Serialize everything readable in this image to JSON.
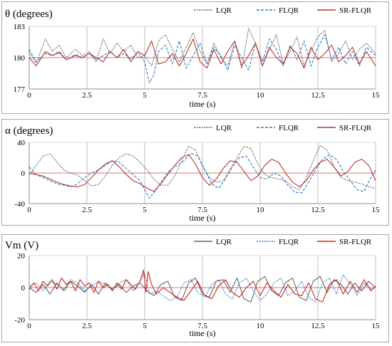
{
  "chart_data": [
    {
      "type": "line",
      "title": "θ (degrees)",
      "xlabel": "time (s)",
      "ylabel": "",
      "xlim": [
        0,
        15
      ],
      "ylim": [
        177,
        183
      ],
      "xticks": [
        "0",
        "2.5",
        "5",
        "7.5",
        "10",
        "12.5",
        "15"
      ],
      "yticks": [
        "177",
        "180",
        "183"
      ],
      "reference": 180,
      "grid": "vertical",
      "legend_position": "top-right",
      "series": [
        {
          "name": "LQR",
          "color": "#666666",
          "dash": "2,1.5",
          "x": [
            0,
            0.3,
            0.7,
            1.0,
            1.3,
            1.6,
            2.0,
            2.3,
            2.6,
            2.9,
            3.2,
            3.5,
            3.8,
            4.1,
            4.4,
            4.7,
            5.0,
            5.3,
            5.6,
            5.9,
            6.2,
            6.5,
            6.8,
            7.1,
            7.4,
            7.7,
            8.0,
            8.3,
            8.6,
            8.9,
            9.2,
            9.5,
            9.8,
            10.1,
            10.4,
            10.7,
            11.0,
            11.3,
            11.6,
            11.9,
            12.2,
            12.5,
            12.8,
            13.1,
            13.4,
            13.7,
            14.0,
            14.3,
            14.6,
            15.0
          ],
          "y": [
            180.5,
            179.5,
            181.8,
            180.6,
            181.2,
            180.0,
            180.8,
            180.2,
            180.6,
            179.6,
            181.8,
            180.4,
            181.4,
            180.6,
            181.2,
            180.0,
            180.2,
            179.2,
            181.6,
            182.2,
            180.8,
            179.6,
            181.0,
            182.4,
            180.6,
            179.4,
            181.4,
            180.0,
            179.2,
            181.6,
            179.0,
            182.8,
            181.4,
            179.2,
            180.8,
            182.2,
            179.4,
            180.6,
            182.0,
            179.2,
            180.6,
            182.0,
            182.6,
            179.6,
            180.4,
            181.6,
            179.8,
            180.8,
            181.4,
            180.4
          ]
        },
        {
          "name": "FLQR",
          "color": "#2f7fc8",
          "dash": "4,2",
          "x": [
            0,
            0.3,
            0.7,
            1.0,
            1.3,
            1.6,
            2.0,
            2.3,
            2.6,
            2.9,
            3.2,
            3.5,
            3.8,
            4.1,
            4.4,
            4.7,
            5.0,
            5.2,
            5.4,
            5.6,
            5.9,
            6.2,
            6.5,
            6.8,
            7.1,
            7.4,
            7.7,
            8.0,
            8.3,
            8.6,
            8.9,
            9.2,
            9.5,
            9.8,
            10.1,
            10.4,
            10.7,
            11.0,
            11.3,
            11.6,
            11.9,
            12.2,
            12.5,
            12.8,
            13.1,
            13.4,
            13.7,
            14.0,
            14.3,
            14.6,
            15.0
          ],
          "y": [
            180.8,
            179.6,
            180.4,
            180.2,
            180.6,
            179.8,
            180.3,
            180.0,
            180.4,
            179.8,
            180.2,
            180.6,
            180.0,
            180.4,
            179.9,
            180.5,
            179.6,
            177.6,
            178.4,
            180.6,
            181.2,
            179.4,
            181.6,
            179.0,
            180.2,
            181.4,
            179.4,
            181.0,
            180.2,
            178.8,
            181.2,
            180.0,
            178.8,
            181.4,
            179.6,
            181.8,
            180.8,
            179.2,
            181.2,
            179.8,
            181.6,
            179.2,
            181.0,
            182.2,
            179.8,
            181.0,
            179.4,
            180.6,
            179.2,
            181.0,
            180.2
          ]
        },
        {
          "name": "SR-FLQR",
          "color": "#b8362a",
          "dash": "",
          "x": [
            0,
            0.3,
            0.7,
            1.0,
            1.3,
            1.6,
            2.0,
            2.3,
            2.6,
            2.9,
            3.2,
            3.5,
            3.8,
            4.1,
            4.4,
            4.7,
            5.0,
            5.3,
            5.6,
            5.9,
            6.2,
            6.5,
            6.8,
            7.1,
            7.4,
            7.7,
            8.0,
            8.3,
            8.6,
            8.9,
            9.2,
            9.5,
            9.8,
            10.1,
            10.4,
            10.7,
            11.0,
            11.3,
            11.6,
            11.9,
            12.2,
            12.5,
            12.8,
            13.1,
            13.4,
            13.7,
            14.0,
            14.3,
            14.6,
            15.0
          ],
          "y": [
            180.0,
            179.2,
            180.6,
            180.2,
            180.5,
            179.8,
            180.2,
            180.0,
            180.4,
            180.0,
            179.6,
            180.6,
            180.0,
            180.8,
            179.6,
            180.6,
            180.2,
            181.6,
            179.4,
            179.6,
            180.4,
            179.2,
            180.4,
            181.8,
            179.6,
            179.0,
            180.8,
            179.4,
            180.6,
            181.6,
            179.2,
            180.2,
            181.4,
            179.2,
            181.0,
            180.0,
            179.4,
            181.0,
            180.4,
            179.0,
            181.0,
            179.8,
            180.4,
            181.2,
            179.6,
            180.2,
            181.0,
            179.4,
            180.6,
            179.2
          ]
        }
      ]
    },
    {
      "type": "line",
      "title": "α (degrees)",
      "xlabel": "time (s)",
      "ylabel": "",
      "xlim": [
        0,
        15
      ],
      "ylim": [
        -40,
        40
      ],
      "xticks": [
        "0",
        "2.5",
        "5",
        "7.5",
        "10",
        "12.5",
        "15"
      ],
      "yticks": [
        "-40",
        "0",
        "40"
      ],
      "reference": 0,
      "grid": "vertical",
      "legend_position": "top-right",
      "series": [
        {
          "name": "LQR",
          "color": "#666666",
          "dash": "2,1.5",
          "x": [
            0,
            0.3,
            0.6,
            0.9,
            1.2,
            1.5,
            1.8,
            2.1,
            2.4,
            2.7,
            3.0,
            3.3,
            3.6,
            3.9,
            4.2,
            4.5,
            4.8,
            5.1,
            5.4,
            5.7,
            6.0,
            6.3,
            6.6,
            6.9,
            7.2,
            7.5,
            7.8,
            8.1,
            8.4,
            8.7,
            9.0,
            9.3,
            9.6,
            9.9,
            10.2,
            10.5,
            10.8,
            11.1,
            11.4,
            11.7,
            12.0,
            12.3,
            12.6,
            12.9,
            13.2,
            13.5,
            13.8,
            14.1,
            14.4,
            14.7,
            15.0
          ],
          "y": [
            -2,
            10,
            22,
            25,
            14,
            4,
            0,
            -3,
            -10,
            -17,
            -15,
            -4,
            10,
            20,
            25,
            22,
            14,
            4,
            -8,
            -16,
            -16,
            -4,
            16,
            35,
            30,
            10,
            -6,
            -12,
            -10,
            5,
            20,
            35,
            32,
            12,
            -2,
            -6,
            -8,
            -10,
            -18,
            -22,
            -6,
            16,
            36,
            30,
            8,
            -6,
            -10,
            -12,
            -14,
            -18,
            -20
          ]
        },
        {
          "name": "FLQR",
          "color": "#2f7fc8",
          "dash": "4,2",
          "x": [
            0,
            0.3,
            0.6,
            0.9,
            1.2,
            1.5,
            1.8,
            2.1,
            2.4,
            2.7,
            3.0,
            3.3,
            3.6,
            3.9,
            4.2,
            4.5,
            4.8,
            5.0,
            5.2,
            5.5,
            5.8,
            6.1,
            6.4,
            6.7,
            7.0,
            7.3,
            7.6,
            7.9,
            8.2,
            8.5,
            8.8,
            9.1,
            9.4,
            9.7,
            10.0,
            10.3,
            10.6,
            10.9,
            11.2,
            11.5,
            11.8,
            12.1,
            12.4,
            12.7,
            13.0,
            13.3,
            13.6,
            13.9,
            14.2,
            14.5,
            14.8,
            15.0
          ],
          "y": [
            8,
            -2,
            -6,
            -10,
            -14,
            -16,
            -18,
            -14,
            -6,
            0,
            4,
            10,
            16,
            14,
            6,
            -2,
            -10,
            -22,
            -33,
            -22,
            -8,
            4,
            10,
            16,
            26,
            22,
            4,
            -14,
            -20,
            -8,
            8,
            20,
            22,
            8,
            -6,
            -8,
            0,
            -4,
            -16,
            -25,
            -26,
            -12,
            4,
            18,
            24,
            18,
            2,
            -10,
            -22,
            -24,
            -6,
            4
          ]
        },
        {
          "name": "SR-FLQR",
          "color": "#b8362a",
          "dash": "",
          "x": [
            0,
            0.3,
            0.6,
            0.9,
            1.2,
            1.5,
            1.8,
            2.1,
            2.4,
            2.7,
            3.0,
            3.3,
            3.6,
            3.9,
            4.2,
            4.5,
            4.8,
            5.1,
            5.4,
            5.7,
            6.0,
            6.3,
            6.6,
            6.9,
            7.2,
            7.5,
            7.8,
            8.1,
            8.4,
            8.7,
            9.0,
            9.3,
            9.6,
            9.9,
            10.2,
            10.5,
            10.8,
            11.1,
            11.4,
            11.7,
            12.0,
            12.3,
            12.6,
            12.9,
            13.2,
            13.5,
            13.8,
            14.1,
            14.4,
            14.7,
            15.0
          ],
          "y": [
            0,
            -2,
            -4,
            -8,
            -12,
            -15,
            -17,
            -18,
            -15,
            -6,
            4,
            12,
            16,
            8,
            -2,
            -10,
            -14,
            -20,
            -24,
            -14,
            -2,
            10,
            20,
            24,
            12,
            -6,
            -16,
            -8,
            6,
            16,
            14,
            2,
            -10,
            -4,
            10,
            18,
            14,
            0,
            -12,
            -18,
            -10,
            4,
            14,
            18,
            8,
            -4,
            2,
            14,
            18,
            10,
            -10
          ]
        }
      ]
    },
    {
      "type": "line",
      "title": "Vm (V)",
      "xlabel": "time (s)",
      "ylabel": "",
      "xlim": [
        0,
        15
      ],
      "ylim": [
        -20,
        20
      ],
      "xticks": [
        "0",
        "2.5",
        "5",
        "7.5",
        "10",
        "12.5",
        "15"
      ],
      "yticks": [
        "-20",
        "0",
        "20"
      ],
      "reference": 0,
      "grid": "vertical",
      "legend_position": "top-right",
      "series": [
        {
          "name": "LQR",
          "color": "#666666",
          "dash": "",
          "x": [
            0,
            0.3,
            0.6,
            0.9,
            1.2,
            1.5,
            1.8,
            2.1,
            2.4,
            2.7,
            3.0,
            3.3,
            3.6,
            3.9,
            4.2,
            4.5,
            4.8,
            5.1,
            5.4,
            5.7,
            6.0,
            6.3,
            6.6,
            6.9,
            7.2,
            7.5,
            7.8,
            8.1,
            8.4,
            8.7,
            9.0,
            9.3,
            9.6,
            9.9,
            10.2,
            10.5,
            10.8,
            11.1,
            11.4,
            11.7,
            12.0,
            12.3,
            12.6,
            12.9,
            13.2,
            13.5,
            13.8,
            14.1,
            14.4,
            14.7,
            15.0
          ],
          "y": [
            0,
            -3,
            2,
            -4,
            3,
            -2,
            4,
            1,
            -3,
            2,
            -4,
            3,
            -1,
            2,
            -3,
            1,
            3,
            -2,
            -5,
            2,
            4,
            -6,
            -8,
            3,
            6,
            -4,
            -6,
            4,
            5,
            -3,
            6,
            -7,
            -9,
            4,
            7,
            -2,
            -5,
            3,
            6,
            -6,
            -8,
            4,
            7,
            -3,
            5,
            2,
            -4,
            3,
            -2,
            4,
            0
          ]
        },
        {
          "name": "FLQR",
          "color": "#2f7fc8",
          "dash": "2,1.5",
          "x": [
            0,
            0.3,
            0.6,
            0.9,
            1.2,
            1.5,
            1.8,
            2.1,
            2.4,
            2.7,
            3.0,
            3.3,
            3.6,
            3.9,
            4.2,
            4.5,
            4.8,
            5.0,
            5.2,
            5.5,
            5.8,
            6.1,
            6.4,
            6.7,
            7.0,
            7.3,
            7.6,
            7.9,
            8.2,
            8.5,
            8.8,
            9.1,
            9.4,
            9.7,
            10.0,
            10.3,
            10.6,
            10.9,
            11.2,
            11.5,
            11.8,
            12.1,
            12.4,
            12.7,
            13.0,
            13.3,
            13.6,
            13.9,
            14.2,
            14.5,
            14.8,
            15.0
          ],
          "y": [
            1,
            3,
            -2,
            4,
            2,
            -1,
            5,
            3,
            -2,
            1,
            4,
            2,
            -1,
            3,
            5,
            -2,
            4,
            9,
            -4,
            -2,
            -5,
            -8,
            -6,
            3,
            5,
            -3,
            -6,
            2,
            5,
            -4,
            -7,
            3,
            6,
            -2,
            -8,
            -4,
            3,
            6,
            -5,
            -2,
            4,
            -6,
            -9,
            3,
            6,
            -4,
            8,
            2,
            -5,
            3,
            -1,
            0
          ]
        },
        {
          "name": "SR-FLQR",
          "color": "#d4261c",
          "dash": "",
          "x": [
            0,
            0.2,
            0.4,
            0.6,
            0.8,
            1.0,
            1.2,
            1.4,
            1.6,
            1.8,
            2.0,
            2.2,
            2.4,
            2.6,
            2.8,
            3.0,
            3.2,
            3.4,
            3.6,
            3.8,
            4.0,
            4.2,
            4.4,
            4.6,
            4.8,
            4.95,
            5.05,
            5.15,
            5.3,
            5.5,
            5.8,
            6.1,
            6.4,
            6.7,
            7.0,
            7.3,
            7.6,
            7.9,
            8.2,
            8.5,
            8.8,
            9.1,
            9.4,
            9.7,
            10.0,
            10.3,
            10.6,
            10.9,
            11.2,
            11.5,
            11.8,
            12.1,
            12.4,
            12.7,
            13.0,
            13.3,
            13.6,
            13.9,
            14.2,
            14.5,
            14.8,
            15.0
          ],
          "y": [
            -1,
            3,
            -2,
            4,
            1,
            5,
            -1,
            6,
            2,
            4,
            -2,
            5,
            1,
            3,
            -3,
            4,
            0,
            2,
            -2,
            3,
            -1,
            5,
            2,
            -1,
            4,
            11,
            -3,
            10,
            2,
            -4,
            0,
            -3,
            -6,
            -8,
            -2,
            4,
            -5,
            -7,
            1,
            5,
            -3,
            -6,
            0,
            4,
            -5,
            3,
            -2,
            -6,
            2,
            -4,
            -5,
            3,
            -7,
            -9,
            2,
            5,
            -4,
            4,
            -3,
            5,
            -2,
            1
          ]
        }
      ]
    }
  ]
}
